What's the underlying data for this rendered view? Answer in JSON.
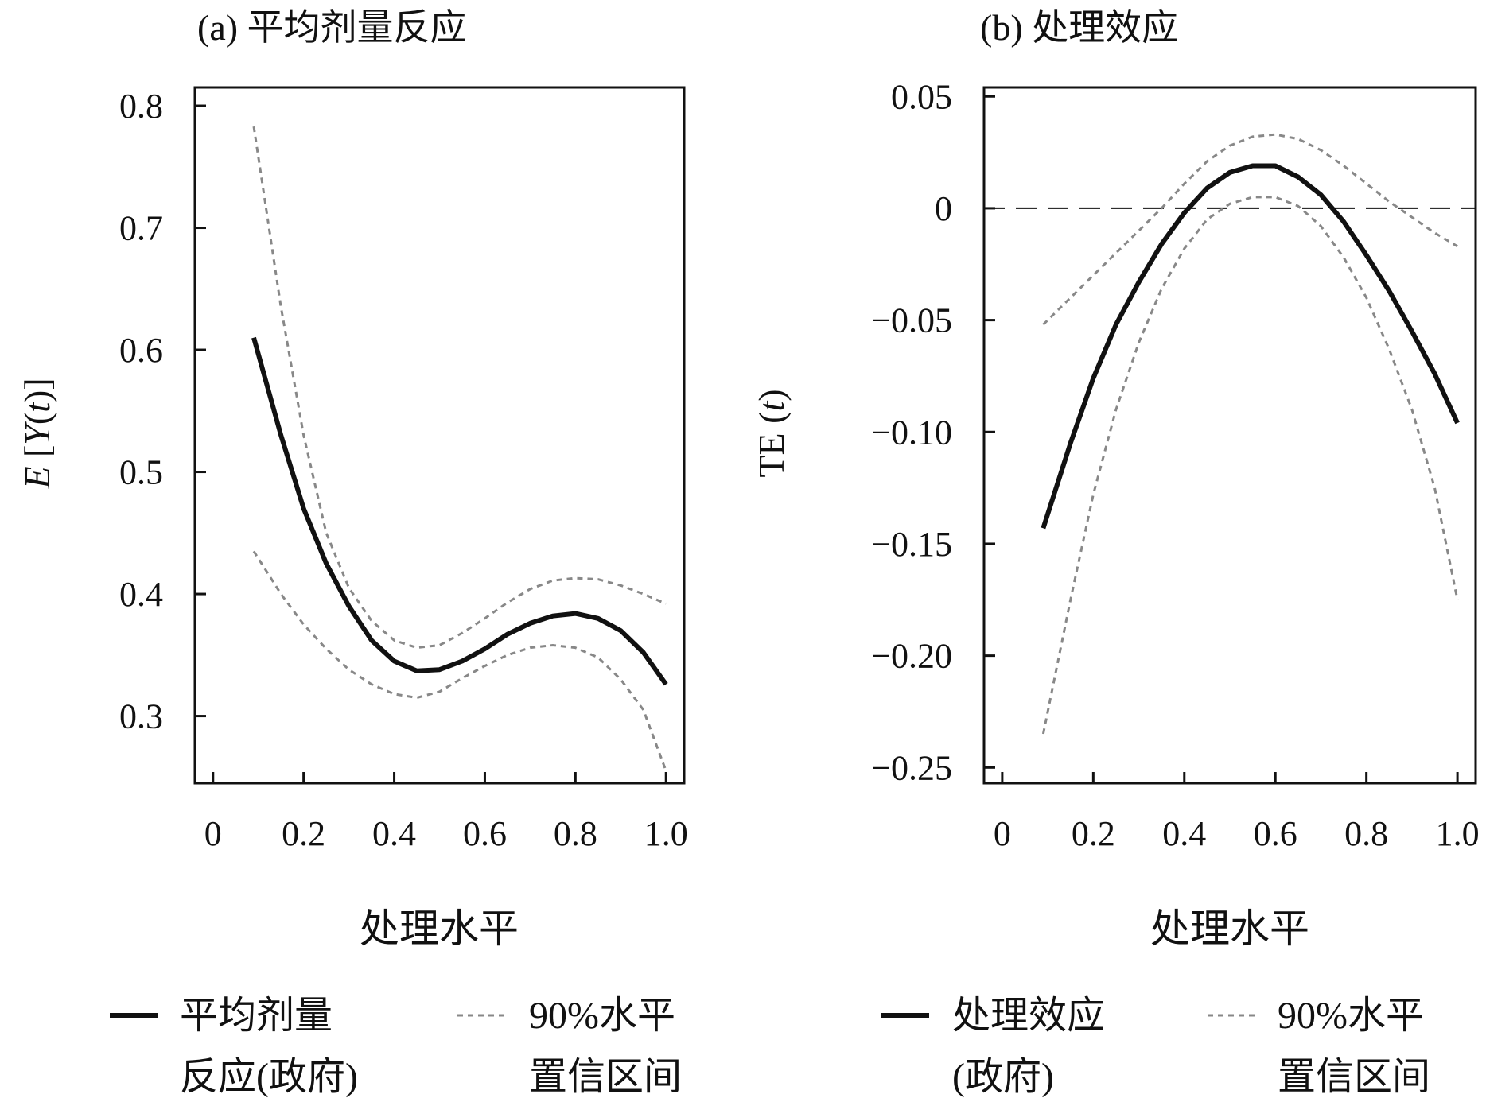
{
  "chart_data": [
    {
      "type": "line",
      "title": "(a) 平均剂量反应",
      "xlabel": "处理水平",
      "ylabel": "E [Y(t)]",
      "xlim": [
        -0.04,
        1.04
      ],
      "ylim": [
        0.245,
        0.815
      ],
      "xticks": [
        0,
        0.2,
        0.4,
        0.6,
        0.8,
        1.0
      ],
      "xtick_labels": [
        "0",
        "0.2",
        "0.4",
        "0.6",
        "0.8",
        "1.0"
      ],
      "yticks": [
        0.3,
        0.4,
        0.5,
        0.6,
        0.7,
        0.8
      ],
      "ytick_labels": [
        "0.3",
        "0.4",
        "0.5",
        "0.6",
        "0.7",
        "0.8"
      ],
      "series": [
        {
          "name": "平均剂量反应(政府)",
          "style": "solid",
          "color": "#111111",
          "x": [
            0.09,
            0.15,
            0.2,
            0.25,
            0.3,
            0.35,
            0.4,
            0.45,
            0.5,
            0.55,
            0.6,
            0.65,
            0.7,
            0.75,
            0.8,
            0.85,
            0.9,
            0.95,
            1.0
          ],
          "y": [
            0.61,
            0.53,
            0.47,
            0.425,
            0.39,
            0.362,
            0.345,
            0.337,
            0.338,
            0.345,
            0.355,
            0.367,
            0.376,
            0.382,
            0.384,
            0.38,
            0.37,
            0.352,
            0.326
          ]
        },
        {
          "name": "90%水平置信区间 upper",
          "style": "dotted",
          "color": "#888888",
          "x": [
            0.09,
            0.15,
            0.2,
            0.25,
            0.3,
            0.35,
            0.4,
            0.45,
            0.5,
            0.55,
            0.6,
            0.65,
            0.7,
            0.75,
            0.8,
            0.85,
            0.9,
            0.95,
            1.0
          ],
          "y": [
            0.783,
            0.635,
            0.53,
            0.45,
            0.405,
            0.378,
            0.362,
            0.356,
            0.358,
            0.368,
            0.38,
            0.393,
            0.404,
            0.411,
            0.413,
            0.412,
            0.407,
            0.4,
            0.392
          ]
        },
        {
          "name": "90%水平置信区间 lower",
          "style": "dotted",
          "color": "#888888",
          "x": [
            0.09,
            0.15,
            0.2,
            0.25,
            0.3,
            0.35,
            0.4,
            0.45,
            0.5,
            0.55,
            0.6,
            0.65,
            0.7,
            0.75,
            0.8,
            0.85,
            0.9,
            0.95,
            1.0
          ],
          "y": [
            0.435,
            0.4,
            0.375,
            0.355,
            0.338,
            0.326,
            0.318,
            0.315,
            0.32,
            0.331,
            0.341,
            0.35,
            0.356,
            0.358,
            0.356,
            0.348,
            0.33,
            0.305,
            0.255
          ]
        }
      ]
    },
    {
      "type": "line",
      "title": "(b) 处理效应",
      "xlabel": "处理水平",
      "ylabel": "TE (t)",
      "xlim": [
        -0.04,
        1.04
      ],
      "ylim": [
        -0.257,
        0.054
      ],
      "xticks": [
        0,
        0.2,
        0.4,
        0.6,
        0.8,
        1.0
      ],
      "xtick_labels": [
        "0",
        "0.2",
        "0.4",
        "0.6",
        "0.8",
        "1.0"
      ],
      "yticks": [
        -0.25,
        -0.2,
        -0.15,
        -0.1,
        -0.05,
        0,
        0.05
      ],
      "ytick_labels": [
        "−0.25",
        "−0.20",
        "−0.15",
        "−0.10",
        "−0.05",
        "0",
        "0.05"
      ],
      "reference_line": {
        "y": 0,
        "style": "dashed"
      },
      "series": [
        {
          "name": "处理效应(政府)",
          "style": "solid",
          "color": "#111111",
          "x": [
            0.09,
            0.15,
            0.2,
            0.25,
            0.3,
            0.35,
            0.4,
            0.45,
            0.5,
            0.55,
            0.6,
            0.65,
            0.7,
            0.75,
            0.8,
            0.85,
            0.9,
            0.95,
            1.0
          ],
          "y": [
            -0.143,
            -0.105,
            -0.076,
            -0.052,
            -0.033,
            -0.016,
            -0.002,
            0.009,
            0.016,
            0.019,
            0.019,
            0.014,
            0.006,
            -0.006,
            -0.021,
            -0.037,
            -0.055,
            -0.074,
            -0.096
          ]
        },
        {
          "name": "90%水平置信区间 upper",
          "style": "dotted",
          "color": "#888888",
          "x": [
            0.09,
            0.15,
            0.2,
            0.25,
            0.3,
            0.35,
            0.4,
            0.45,
            0.5,
            0.55,
            0.6,
            0.65,
            0.7,
            0.75,
            0.8,
            0.85,
            0.9,
            0.95,
            1.0
          ],
          "y": [
            -0.052,
            -0.04,
            -0.03,
            -0.02,
            -0.01,
            0.0,
            0.011,
            0.021,
            0.028,
            0.032,
            0.033,
            0.031,
            0.026,
            0.019,
            0.011,
            0.003,
            -0.004,
            -0.011,
            -0.017
          ]
        },
        {
          "name": "90%水平置信区间 lower",
          "style": "dotted",
          "color": "#888888",
          "x": [
            0.09,
            0.15,
            0.2,
            0.25,
            0.3,
            0.35,
            0.4,
            0.45,
            0.5,
            0.55,
            0.6,
            0.65,
            0.7,
            0.75,
            0.8,
            0.85,
            0.9,
            0.95,
            1.0
          ],
          "y": [
            -0.235,
            -0.175,
            -0.128,
            -0.09,
            -0.06,
            -0.036,
            -0.018,
            -0.005,
            0.002,
            0.005,
            0.005,
            0.001,
            -0.008,
            -0.022,
            -0.04,
            -0.063,
            -0.09,
            -0.125,
            -0.175
          ]
        }
      ]
    }
  ],
  "legends": [
    {
      "line_label": "平均剂量",
      "line_label_2": "反应(政府)",
      "ci_label": "90%水平",
      "ci_label_2": "置信区间"
    },
    {
      "line_label": "处理效应",
      "line_label_2": "(政府)",
      "ci_label": "90%水平",
      "ci_label_2": "置信区间"
    }
  ]
}
